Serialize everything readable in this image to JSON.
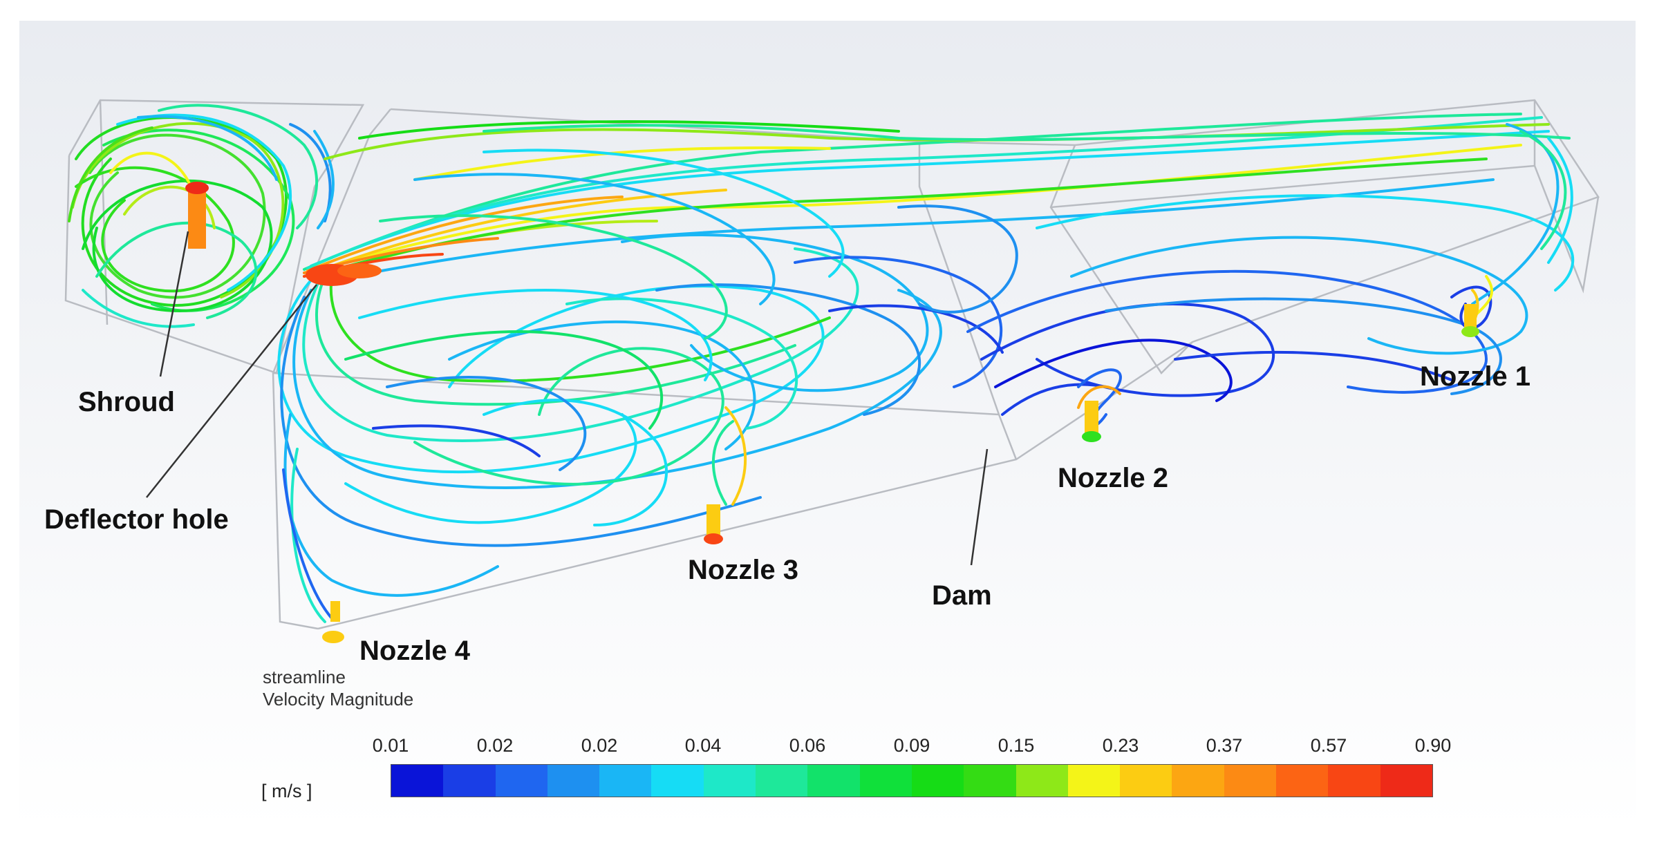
{
  "labels": {
    "shroud": "Shroud",
    "deflector_hole": "Deflector hole",
    "dam": "Dam",
    "nozzle1": "Nozzle 1",
    "nozzle2": "Nozzle 2",
    "nozzle3": "Nozzle 3",
    "nozzle4": "Nozzle 4"
  },
  "legend": {
    "line1": "streamline",
    "line2": "Velocity Magnitude",
    "unit": "[ m/s ]",
    "ticks": [
      "0.01",
      "0.02",
      "0.02",
      "0.04",
      "0.06",
      "0.09",
      "0.15",
      "0.23",
      "0.37",
      "0.57",
      "0.90"
    ],
    "colors": [
      "#0a14d8",
      "#1a3ee6",
      "#1f66f0",
      "#1e90f0",
      "#1ab6f5",
      "#16dcf5",
      "#1ee8c8",
      "#1ee89a",
      "#12e26a",
      "#10e03a",
      "#16dc16",
      "#34dc14",
      "#8ee818",
      "#f4f418",
      "#fccc12",
      "#fca612",
      "#fc8a14",
      "#fc6414",
      "#f84614",
      "#ee2a18"
    ]
  }
}
